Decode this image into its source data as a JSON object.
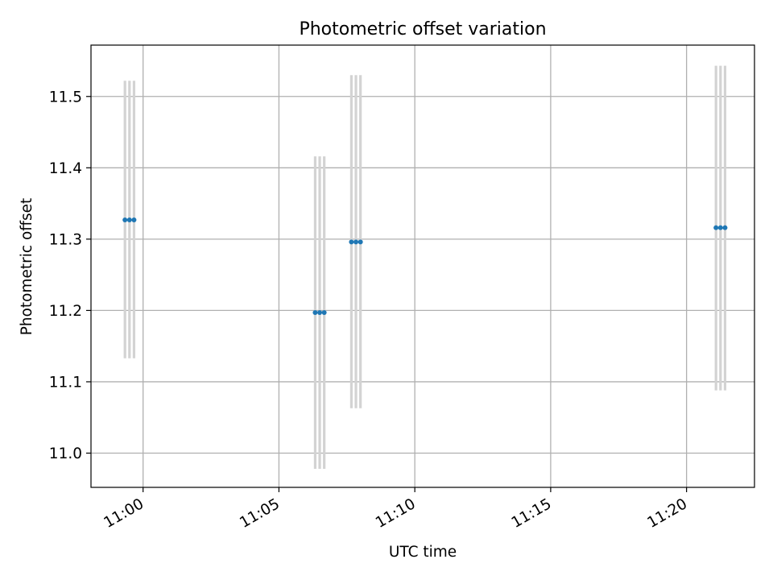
{
  "chart_data": {
    "type": "scatter",
    "title": "Photometric offset variation",
    "xlabel": "UTC time",
    "ylabel": "Photometric offset",
    "x_tick_labels": [
      "11:00",
      "11:05",
      "11:10",
      "11:15",
      "11:20"
    ],
    "x_tick_values": [
      "11:00",
      "11:05",
      "11:10",
      "11:15",
      "11:20"
    ],
    "x_range": [
      "10:58:05",
      "11:22:30"
    ],
    "y_ticks": [
      11.0,
      11.1,
      11.2,
      11.3,
      11.4,
      11.5
    ],
    "y_tick_labels": [
      "11.0",
      "11.1",
      "11.2",
      "11.3",
      "11.4",
      "11.5"
    ],
    "ylim": [
      10.952,
      11.572
    ],
    "grid": true,
    "legend": "none",
    "series": [
      {
        "x": [
          "10:59:20",
          "10:59:30",
          "10:59:40",
          "11:06:20",
          "11:06:30",
          "11:06:40",
          "11:07:40",
          "11:07:50",
          "11:08:00",
          "11:21:05",
          "11:21:15",
          "11:21:25"
        ],
        "y": [
          11.327,
          11.327,
          11.327,
          11.197,
          11.197,
          11.197,
          11.296,
          11.296,
          11.296,
          11.316,
          11.316,
          11.316
        ],
        "err_low": [
          11.133,
          11.133,
          11.133,
          10.978,
          10.978,
          10.978,
          11.063,
          11.063,
          11.063,
          11.088,
          11.088,
          11.088
        ],
        "err_high": [
          11.522,
          11.522,
          11.522,
          11.416,
          11.416,
          11.416,
          11.53,
          11.53,
          11.53,
          11.543,
          11.543,
          11.543
        ]
      }
    ],
    "colors": {
      "points": "#1f77b4",
      "errorbars": "#d3d3d3",
      "grid": "#b0b0b0",
      "axes": "#000000"
    }
  }
}
